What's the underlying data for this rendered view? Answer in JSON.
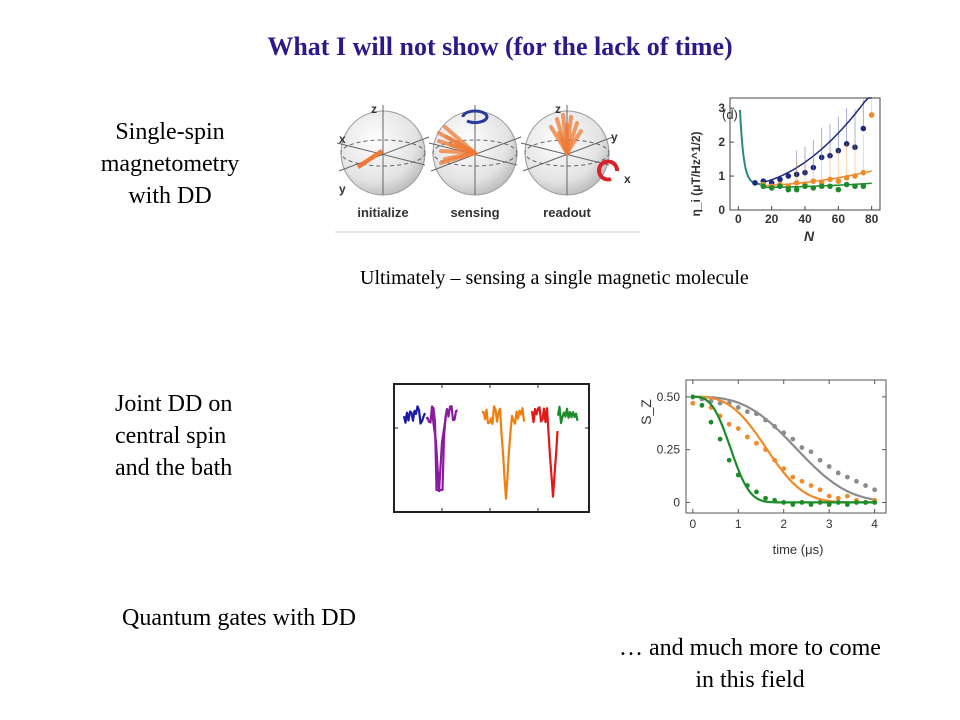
{
  "slide": {
    "title": "What I will not show (for the lack of time)",
    "item1_label_lines": [
      "Single-spin",
      "magnetometry",
      "with DD"
    ],
    "item2_label_lines": [
      "Joint DD on",
      "central spin",
      "and the bath"
    ],
    "item3_label": "Quantum gates with DD",
    "caption": "Ultimately – sensing a single magnetic molecule",
    "closing_lines": [
      "… and much more to come",
      "in this field"
    ]
  },
  "figures": {
    "bloch": {
      "labels": [
        "initialize",
        "sensing",
        "readout"
      ],
      "axis_labels": {
        "z": "z",
        "x": "x",
        "y": "y"
      },
      "arrow_color": "#f07a35",
      "rotation_color": "#d8222a"
    },
    "spectrum": {
      "series_colors": [
        "#1a1aa8",
        "#8a1aa0",
        "#f07f10",
        "#e01818",
        "#1c8c2a"
      ]
    }
  },
  "chart_data": [
    {
      "type": "scatter",
      "panel_label": "(d)",
      "xlabel": "N",
      "ylabel": "η_i (μT/Hz^1/2)",
      "xlim": [
        -5,
        85
      ],
      "ylim": [
        0,
        3.3
      ],
      "xticks": [
        0,
        20,
        40,
        60,
        80
      ],
      "yticks": [
        0,
        1,
        2,
        3
      ],
      "series": [
        {
          "color": "#1c2a80",
          "x": [
            10,
            15,
            20,
            25,
            30,
            35,
            40,
            45,
            50,
            55,
            60,
            65,
            70,
            75
          ],
          "y": [
            0.8,
            0.85,
            0.8,
            0.9,
            1.0,
            1.05,
            1.1,
            1.25,
            1.55,
            1.6,
            1.75,
            1.95,
            1.85,
            2.4
          ]
        },
        {
          "color": "#f08a2a",
          "x": [
            15,
            20,
            25,
            30,
            35,
            40,
            45,
            50,
            55,
            60,
            65,
            70,
            75,
            80
          ],
          "y": [
            0.75,
            0.7,
            0.75,
            0.7,
            0.8,
            0.75,
            0.85,
            0.8,
            0.9,
            0.85,
            0.95,
            1.0,
            1.1,
            2.8
          ]
        },
        {
          "color": "#1c8c2a",
          "x": [
            15,
            20,
            25,
            30,
            35,
            40,
            45,
            50,
            55,
            60,
            65,
            70,
            75
          ],
          "y": [
            0.7,
            0.65,
            0.7,
            0.6,
            0.6,
            0.7,
            0.65,
            0.7,
            0.7,
            0.6,
            0.75,
            0.7,
            0.7
          ]
        }
      ]
    },
    {
      "type": "scatter",
      "xlabel": "time (μs)",
      "ylabel": "S_Z",
      "xlim": [
        -0.15,
        4.25
      ],
      "ylim": [
        -0.05,
        0.58
      ],
      "xticks": [
        0,
        1,
        2,
        3,
        4
      ],
      "yticks": [
        0,
        0.25,
        0.5
      ],
      "series": [
        {
          "color": "#8c8c8c",
          "tau": 2.6,
          "x": [
            0.0,
            0.2,
            0.4,
            0.6,
            0.8,
            1.0,
            1.2,
            1.4,
            1.6,
            1.8,
            2.0,
            2.2,
            2.4,
            2.6,
            2.8,
            3.0,
            3.2,
            3.4,
            3.6,
            3.8,
            4.0
          ],
          "y": [
            0.5,
            0.49,
            0.48,
            0.47,
            0.47,
            0.45,
            0.43,
            0.42,
            0.39,
            0.36,
            0.33,
            0.3,
            0.26,
            0.24,
            0.2,
            0.17,
            0.14,
            0.12,
            0.1,
            0.08,
            0.06
          ]
        },
        {
          "color": "#f08a2a",
          "tau": 1.85,
          "x": [
            0.0,
            0.2,
            0.4,
            0.6,
            0.8,
            1.0,
            1.2,
            1.4,
            1.6,
            1.8,
            2.0,
            2.2,
            2.4,
            2.6,
            2.8,
            3.0,
            3.2,
            3.4,
            3.6,
            3.8,
            4.0
          ],
          "y": [
            0.47,
            0.46,
            0.45,
            0.41,
            0.37,
            0.35,
            0.31,
            0.28,
            0.25,
            0.2,
            0.16,
            0.12,
            0.1,
            0.08,
            0.06,
            0.03,
            0.02,
            0.03,
            0.01,
            0.0,
            0.01
          ]
        },
        {
          "color": "#1c8c2a",
          "tau": 0.95,
          "x": [
            0.0,
            0.2,
            0.4,
            0.6,
            0.8,
            1.0,
            1.2,
            1.4,
            1.6,
            1.8,
            2.0,
            2.2,
            2.4,
            2.6,
            2.8,
            3.0,
            3.2,
            3.4,
            3.6,
            3.8,
            4.0
          ],
          "y": [
            0.5,
            0.46,
            0.38,
            0.3,
            0.2,
            0.13,
            0.08,
            0.05,
            0.02,
            0.01,
            0.0,
            -0.01,
            0.0,
            -0.01,
            0.0,
            -0.01,
            0.0,
            -0.01,
            0.0,
            0.0,
            0.0
          ]
        }
      ]
    }
  ]
}
